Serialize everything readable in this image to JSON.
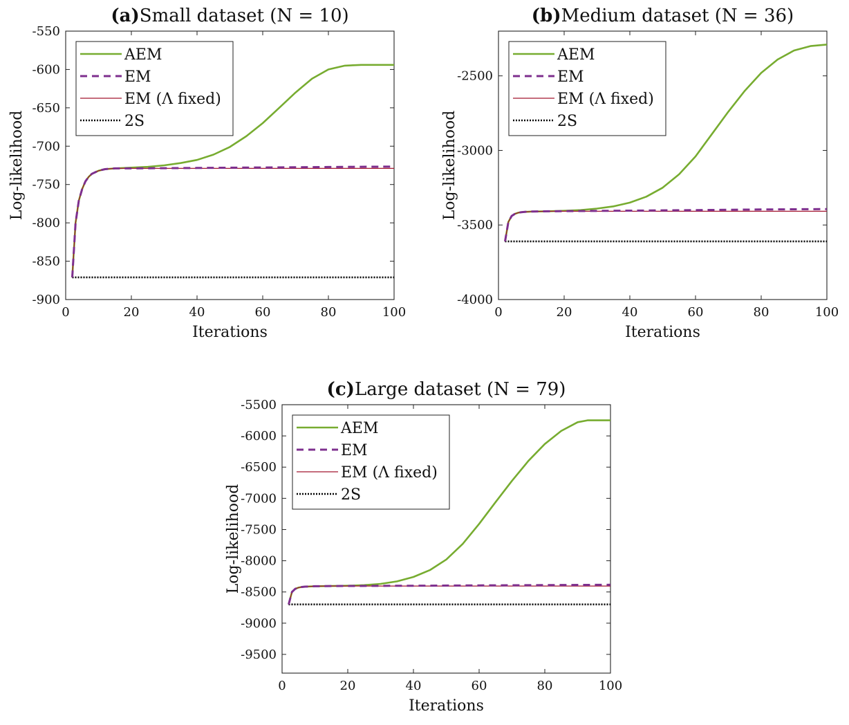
{
  "chart_data": [
    {
      "type": "line",
      "title_bold": "(a)",
      "title": "Small dataset (N = 10)",
      "xlabel": "Iterations",
      "ylabel": "Log-likelihood",
      "xlim": [
        0,
        100
      ],
      "ylim": [
        -900,
        -550
      ],
      "xticks": [
        0,
        20,
        40,
        60,
        80,
        100
      ],
      "yticks": [
        -550,
        -600,
        -650,
        -700,
        -750,
        -800,
        -850,
        -900
      ],
      "legend_position": "top-left",
      "series": [
        {
          "name": "AEM",
          "color": "#77ac30",
          "style": "solid",
          "x": [
            2,
            3,
            4,
            5,
            6,
            7,
            8,
            10,
            12,
            15,
            20,
            25,
            30,
            35,
            40,
            45,
            50,
            55,
            60,
            65,
            70,
            75,
            80,
            85,
            90,
            95,
            100
          ],
          "y": [
            -871,
            -800,
            -771,
            -756,
            -746,
            -740,
            -736,
            -732,
            -730,
            -729,
            -728,
            -727,
            -725,
            -722,
            -718,
            -711,
            -701,
            -687,
            -670,
            -650,
            -630,
            -612,
            -600,
            -595,
            -594,
            -594,
            -594
          ]
        },
        {
          "name": "EM",
          "color": "#7e2f8e",
          "style": "dashed",
          "x": [
            2,
            3,
            4,
            5,
            6,
            7,
            8,
            10,
            12,
            15,
            20,
            30,
            40,
            50,
            60,
            70,
            80,
            90,
            100
          ],
          "y": [
            -871,
            -800,
            -771,
            -756,
            -746,
            -740,
            -736,
            -732,
            -730,
            -729,
            -729,
            -728.7,
            -728.4,
            -728.1,
            -727.8,
            -727.5,
            -727.2,
            -726.9,
            -726.6
          ]
        },
        {
          "name": "EM (Λ fixed)",
          "color": "#a2142f",
          "style": "solid-thin",
          "x": [
            2,
            3,
            4,
            5,
            6,
            7,
            8,
            10,
            12,
            15,
            20,
            40,
            60,
            80,
            100
          ],
          "y": [
            -871,
            -800,
            -771,
            -756,
            -746,
            -740,
            -736,
            -732,
            -730,
            -729,
            -729,
            -729,
            -729,
            -729,
            -729
          ]
        },
        {
          "name": "2S",
          "color": "#000000",
          "style": "dotted",
          "x": [
            2,
            100
          ],
          "y": [
            -871,
            -871
          ]
        }
      ]
    },
    {
      "type": "line",
      "title_bold": "(b)",
      "title": "Medium dataset (N = 36)",
      "xlabel": "Iterations",
      "ylabel": "Log-likelihood",
      "xlim": [
        0,
        100
      ],
      "ylim": [
        -4000,
        -2200
      ],
      "xticks": [
        0,
        20,
        40,
        60,
        80,
        100
      ],
      "yticks": [
        -2500,
        -3000,
        -3500,
        -4000
      ],
      "legend_position": "top-left",
      "series": [
        {
          "name": "AEM",
          "color": "#77ac30",
          "style": "solid",
          "x": [
            2,
            3,
            4,
            5,
            6,
            7,
            8,
            10,
            15,
            20,
            25,
            30,
            35,
            40,
            45,
            50,
            55,
            60,
            65,
            70,
            75,
            80,
            85,
            90,
            95,
            100
          ],
          "y": [
            -3610,
            -3480,
            -3440,
            -3425,
            -3418,
            -3414,
            -3412,
            -3410,
            -3408,
            -3405,
            -3400,
            -3390,
            -3375,
            -3350,
            -3310,
            -3250,
            -3160,
            -3040,
            -2890,
            -2740,
            -2600,
            -2480,
            -2390,
            -2330,
            -2300,
            -2290
          ]
        },
        {
          "name": "EM",
          "color": "#7e2f8e",
          "style": "dashed",
          "x": [
            2,
            3,
            4,
            5,
            6,
            7,
            8,
            10,
            15,
            20,
            40,
            60,
            80,
            100
          ],
          "y": [
            -3610,
            -3480,
            -3440,
            -3425,
            -3418,
            -3414,
            -3412,
            -3410,
            -3408,
            -3407,
            -3404,
            -3400,
            -3396,
            -3393
          ]
        },
        {
          "name": "EM (Λ fixed)",
          "color": "#a2142f",
          "style": "solid-thin",
          "x": [
            2,
            3,
            4,
            5,
            6,
            7,
            8,
            10,
            15,
            20,
            60,
            100
          ],
          "y": [
            -3610,
            -3480,
            -3440,
            -3425,
            -3418,
            -3414,
            -3412,
            -3410,
            -3408,
            -3408,
            -3408,
            -3408
          ]
        },
        {
          "name": "2S",
          "color": "#000000",
          "style": "dotted",
          "x": [
            2,
            100
          ],
          "y": [
            -3610,
            -3610
          ]
        }
      ]
    },
    {
      "type": "line",
      "title_bold": "(c)",
      "title": "Large dataset (N = 79)",
      "xlabel": "Iterations",
      "ylabel": "Log-likelihood",
      "xlim": [
        0,
        100
      ],
      "ylim": [
        -9800,
        -5500
      ],
      "xticks": [
        0,
        20,
        40,
        60,
        80,
        100
      ],
      "yticks": [
        -5500,
        -6000,
        -6500,
        -7000,
        -7500,
        -8000,
        -8500,
        -9000,
        -9500
      ],
      "legend_position": "top-left",
      "series": [
        {
          "name": "AEM",
          "color": "#77ac30",
          "style": "solid",
          "x": [
            2,
            3,
            4,
            5,
            6,
            7,
            8,
            10,
            15,
            20,
            25,
            30,
            35,
            40,
            45,
            50,
            55,
            60,
            65,
            70,
            75,
            80,
            85,
            90,
            93,
            100
          ],
          "y": [
            -8700,
            -8500,
            -8450,
            -8430,
            -8420,
            -8415,
            -8412,
            -8408,
            -8405,
            -8400,
            -8390,
            -8370,
            -8330,
            -8260,
            -8150,
            -7980,
            -7730,
            -7410,
            -7060,
            -6720,
            -6400,
            -6130,
            -5920,
            -5780,
            -5750,
            -5750
          ]
        },
        {
          "name": "EM",
          "color": "#7e2f8e",
          "style": "dashed",
          "x": [
            2,
            3,
            4,
            5,
            6,
            7,
            8,
            10,
            15,
            20,
            40,
            60,
            80,
            100
          ],
          "y": [
            -8700,
            -8500,
            -8450,
            -8430,
            -8420,
            -8415,
            -8412,
            -8408,
            -8405,
            -8404,
            -8400,
            -8395,
            -8390,
            -8385
          ]
        },
        {
          "name": "EM (Λ fixed)",
          "color": "#a2142f",
          "style": "solid-thin",
          "x": [
            2,
            3,
            4,
            5,
            6,
            7,
            8,
            10,
            15,
            20,
            60,
            100
          ],
          "y": [
            -8700,
            -8500,
            -8450,
            -8430,
            -8420,
            -8415,
            -8412,
            -8408,
            -8405,
            -8405,
            -8405,
            -8405
          ]
        },
        {
          "name": "2S",
          "color": "#000000",
          "style": "dotted",
          "x": [
            2,
            100
          ],
          "y": [
            -8700,
            -8700
          ]
        }
      ]
    }
  ]
}
